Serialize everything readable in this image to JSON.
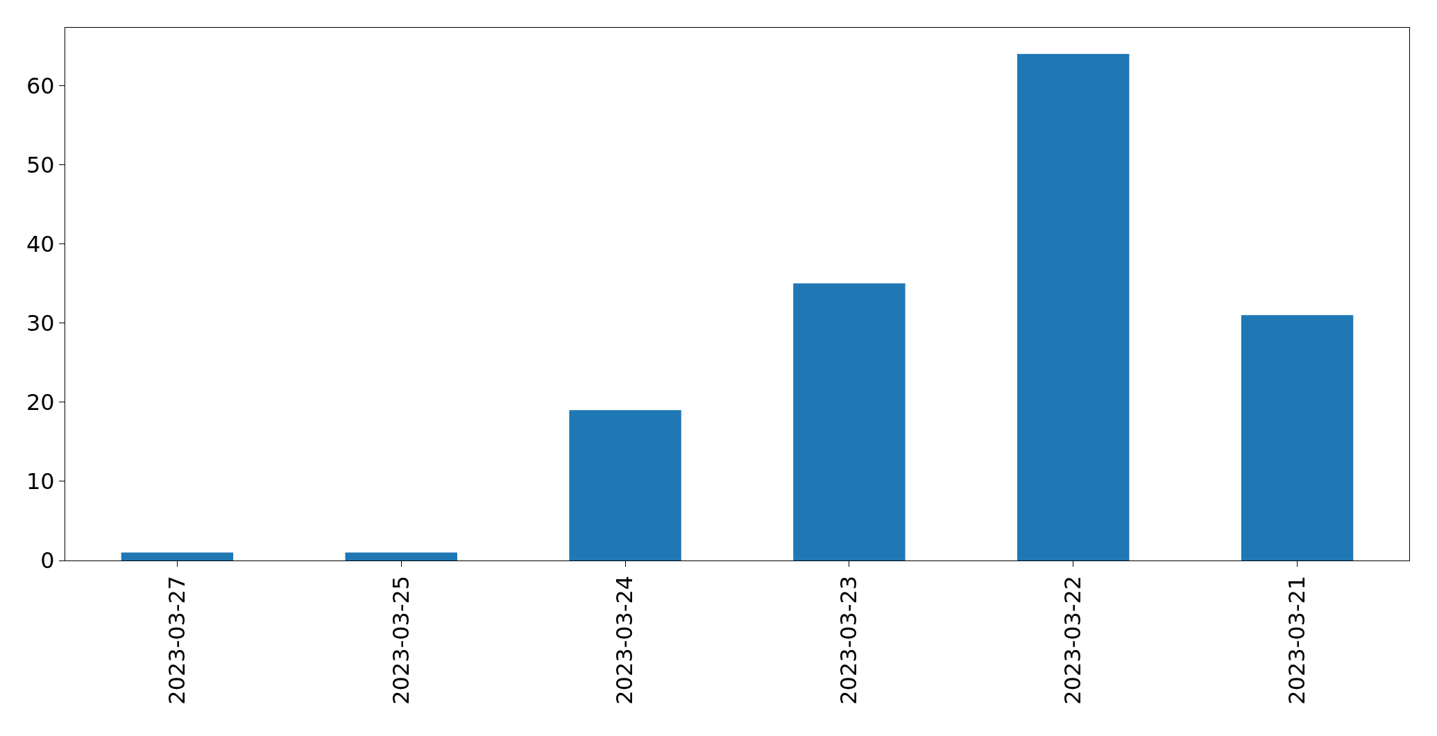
{
  "chart_data": {
    "type": "bar",
    "categories": [
      "2023-03-27",
      "2023-03-25",
      "2023-03-24",
      "2023-03-23",
      "2023-03-22",
      "2023-03-21"
    ],
    "values": [
      1,
      1,
      19,
      35,
      64,
      31
    ],
    "color": "#1f77b4",
    "ylim": [
      0,
      67.3
    ],
    "yticks": [
      0,
      10,
      20,
      30,
      40,
      50,
      60
    ]
  }
}
